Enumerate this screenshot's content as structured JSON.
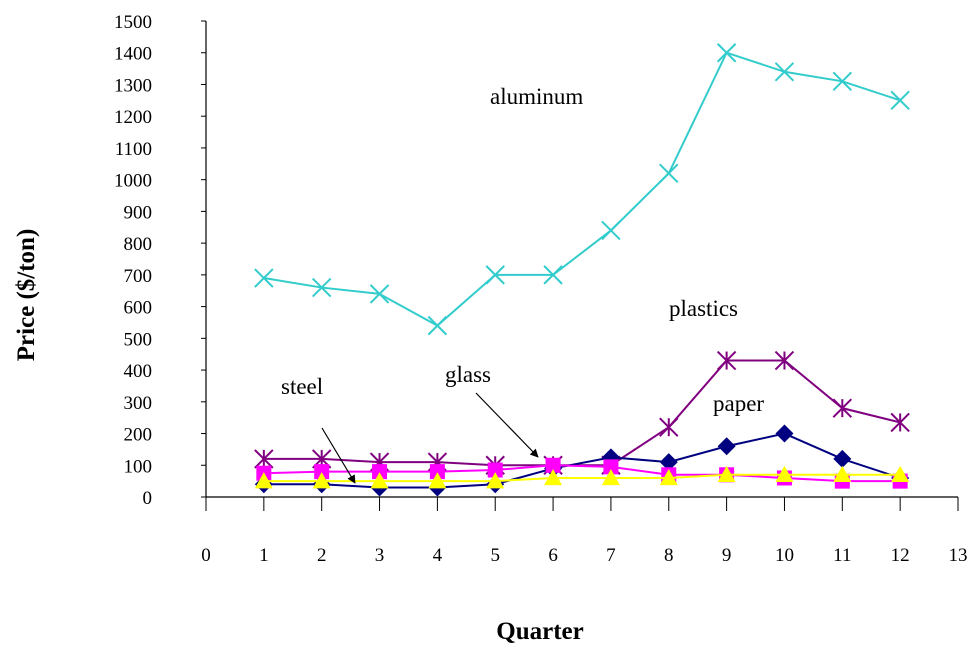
{
  "chart_data": {
    "type": "line",
    "xlabel": "Quarter",
    "ylabel": "Price ($/ton)",
    "xlim": [
      0,
      13
    ],
    "ylim": [
      0,
      1500
    ],
    "x_ticks": [
      0,
      1,
      2,
      3,
      4,
      5,
      6,
      7,
      8,
      9,
      10,
      11,
      12,
      13
    ],
    "y_ticks": [
      0,
      100,
      200,
      300,
      400,
      500,
      600,
      700,
      800,
      900,
      1000,
      1100,
      1200,
      1300,
      1400,
      1500
    ],
    "grid": false,
    "legend": "none",
    "x": [
      1,
      2,
      3,
      4,
      5,
      6,
      7,
      8,
      9,
      10,
      11,
      12
    ],
    "series": [
      {
        "key": "aluminum",
        "color": "#33cccc",
        "marker": "x",
        "values": [
          690,
          660,
          640,
          540,
          700,
          700,
          840,
          1020,
          1400,
          1340,
          1310,
          1250
        ]
      },
      {
        "key": "plastics",
        "color": "#800080",
        "marker": "asterisk",
        "values": [
          120,
          120,
          110,
          110,
          100,
          100,
          100,
          220,
          430,
          430,
          280,
          235
        ]
      },
      {
        "key": "paper",
        "color": "#000080",
        "marker": "diamond",
        "values": [
          40,
          40,
          30,
          30,
          40,
          90,
          125,
          110,
          160,
          200,
          120,
          60
        ]
      },
      {
        "key": "glass",
        "color": "#ff00ff",
        "marker": "square",
        "values": [
          75,
          80,
          80,
          80,
          85,
          100,
          95,
          70,
          70,
          60,
          50,
          50
        ]
      },
      {
        "key": "steel",
        "color": "#ffff00",
        "marker": "triangle",
        "values": [
          50,
          50,
          50,
          50,
          50,
          60,
          60,
          60,
          70,
          70,
          70,
          70
        ]
      }
    ],
    "annotations": [
      {
        "key": "aluminum",
        "text": "aluminum"
      },
      {
        "key": "plastics",
        "text": "plastics"
      },
      {
        "key": "paper",
        "text": "paper"
      },
      {
        "key": "glass",
        "text": "glass"
      },
      {
        "key": "steel",
        "text": "steel"
      }
    ]
  }
}
